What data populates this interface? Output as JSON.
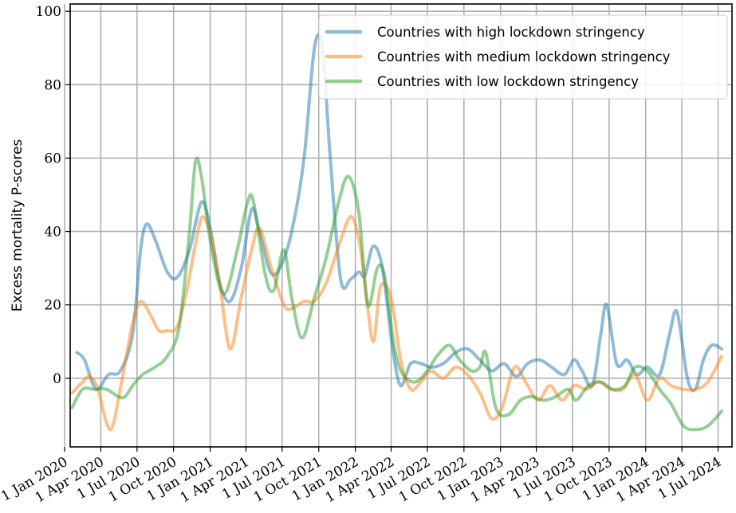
{
  "chart_data": {
    "type": "line",
    "title": "",
    "xlabel": "",
    "ylabel": "Excess mortality P-scores",
    "xlim": [
      "2020-01-15",
      "2024-08-05"
    ],
    "ylim": [
      -18.7,
      102
    ],
    "grid": true,
    "legend_position": "top-right",
    "x_tick_labels": [
      "1 Jan 2020",
      "1 Apr 2020",
      "1 Jul 2020",
      "1 Oct 2020",
      "1 Jan 2021",
      "1 Apr 2021",
      "1 Jul 2021",
      "1 Oct 2021",
      "1 Jan 2022",
      "1 Apr 2022",
      "1 Jul 2022",
      "1 Oct 2022",
      "1 Jan 2023",
      "1 Apr 2023",
      "1 Jul 2023",
      "1 Oct 2023",
      "1 Jan 2024",
      "1 Apr 2024",
      "1 Jul 2024"
    ],
    "x_tick_dates": [
      "2020-01-01",
      "2020-04-01",
      "2020-07-01",
      "2020-10-01",
      "2021-01-01",
      "2021-04-01",
      "2021-07-01",
      "2021-10-01",
      "2022-01-01",
      "2022-04-01",
      "2022-07-01",
      "2022-10-01",
      "2023-01-01",
      "2023-04-01",
      "2023-07-01",
      "2023-10-01",
      "2024-01-01",
      "2024-04-01",
      "2024-07-01"
    ],
    "y_ticks": [
      0,
      20,
      40,
      60,
      80,
      100
    ],
    "series": [
      {
        "name": "Countries with high lockdown stringency",
        "color": "#1f77b4",
        "points": [
          [
            "2020-02-01",
            7
          ],
          [
            "2020-02-20",
            5
          ],
          [
            "2020-03-20",
            -3
          ],
          [
            "2020-04-20",
            1
          ],
          [
            "2020-05-20",
            2
          ],
          [
            "2020-06-20",
            12
          ],
          [
            "2020-07-10",
            35
          ],
          [
            "2020-07-25",
            42
          ],
          [
            "2020-08-15",
            38
          ],
          [
            "2020-09-15",
            29
          ],
          [
            "2020-10-10",
            27.5
          ],
          [
            "2020-11-10",
            35
          ],
          [
            "2020-12-10",
            48
          ],
          [
            "2021-01-01",
            41
          ],
          [
            "2021-01-25",
            26
          ],
          [
            "2021-02-20",
            21
          ],
          [
            "2021-03-20",
            30
          ],
          [
            "2021-04-15",
            46
          ],
          [
            "2021-05-05",
            40
          ],
          [
            "2021-06-01",
            29
          ],
          [
            "2021-06-25",
            30
          ],
          [
            "2021-07-25",
            40
          ],
          [
            "2021-08-25",
            60
          ],
          [
            "2021-09-20",
            90
          ],
          [
            "2021-10-10",
            90
          ],
          [
            "2021-10-30",
            60
          ],
          [
            "2021-11-25",
            27
          ],
          [
            "2021-12-20",
            27
          ],
          [
            "2022-01-10",
            29
          ],
          [
            "2022-01-25",
            28
          ],
          [
            "2022-02-15",
            36
          ],
          [
            "2022-03-10",
            30
          ],
          [
            "2022-04-05",
            8
          ],
          [
            "2022-04-25",
            -2
          ],
          [
            "2022-05-20",
            4
          ],
          [
            "2022-06-15",
            4
          ],
          [
            "2022-07-10",
            3
          ],
          [
            "2022-08-10",
            4
          ],
          [
            "2022-09-10",
            7
          ],
          [
            "2022-10-10",
            8
          ],
          [
            "2022-11-10",
            5
          ],
          [
            "2022-12-10",
            2
          ],
          [
            "2023-01-10",
            4
          ],
          [
            "2023-02-10",
            0.5
          ],
          [
            "2023-03-10",
            4
          ],
          [
            "2023-04-10",
            5
          ],
          [
            "2023-05-10",
            3
          ],
          [
            "2023-06-10",
            1
          ],
          [
            "2023-07-05",
            5
          ],
          [
            "2023-07-25",
            2
          ],
          [
            "2023-08-20",
            -2
          ],
          [
            "2023-09-10",
            12
          ],
          [
            "2023-09-25",
            20
          ],
          [
            "2023-10-20",
            4
          ],
          [
            "2023-11-15",
            5
          ],
          [
            "2023-12-10",
            1
          ],
          [
            "2024-01-05",
            3
          ],
          [
            "2024-02-05",
            1
          ],
          [
            "2024-03-01",
            12
          ],
          [
            "2024-03-20",
            18
          ],
          [
            "2024-04-15",
            0
          ],
          [
            "2024-05-05",
            -3
          ],
          [
            "2024-05-25",
            5
          ],
          [
            "2024-06-15",
            9
          ],
          [
            "2024-07-10",
            8
          ]
        ]
      },
      {
        "name": "Countries with medium lockdown stringency",
        "color": "#ff7f0e",
        "points": [
          [
            "2020-01-20",
            -4
          ],
          [
            "2020-02-15",
            -1
          ],
          [
            "2020-03-05",
            0.5
          ],
          [
            "2020-03-25",
            -3
          ],
          [
            "2020-04-15",
            -12
          ],
          [
            "2020-05-01",
            -13
          ],
          [
            "2020-05-25",
            0
          ],
          [
            "2020-06-20",
            15
          ],
          [
            "2020-07-10",
            21
          ],
          [
            "2020-08-05",
            17
          ],
          [
            "2020-08-25",
            13
          ],
          [
            "2020-09-15",
            13
          ],
          [
            "2020-10-10",
            14
          ],
          [
            "2020-11-05",
            25
          ],
          [
            "2020-12-01",
            40
          ],
          [
            "2020-12-15",
            44
          ],
          [
            "2021-01-05",
            38
          ],
          [
            "2021-01-25",
            26
          ],
          [
            "2021-02-20",
            8
          ],
          [
            "2021-03-20",
            22
          ],
          [
            "2021-04-15",
            35
          ],
          [
            "2021-05-05",
            41
          ],
          [
            "2021-06-01",
            31
          ],
          [
            "2021-07-05",
            20
          ],
          [
            "2021-07-25",
            19
          ],
          [
            "2021-08-25",
            21
          ],
          [
            "2021-09-20",
            21
          ],
          [
            "2021-10-20",
            26
          ],
          [
            "2021-11-20",
            36
          ],
          [
            "2021-12-20",
            44
          ],
          [
            "2022-01-10",
            38
          ],
          [
            "2022-01-25",
            26
          ],
          [
            "2022-02-15",
            10
          ],
          [
            "2022-03-05",
            25
          ],
          [
            "2022-04-01",
            22
          ],
          [
            "2022-04-25",
            5
          ],
          [
            "2022-05-20",
            -3
          ],
          [
            "2022-06-15",
            -1
          ],
          [
            "2022-07-10",
            2
          ],
          [
            "2022-08-10",
            0
          ],
          [
            "2022-09-10",
            3
          ],
          [
            "2022-10-10",
            1
          ],
          [
            "2022-11-10",
            -4
          ],
          [
            "2022-12-10",
            -11
          ],
          [
            "2023-01-05",
            -8
          ],
          [
            "2023-02-05",
            3
          ],
          [
            "2023-03-05",
            -1
          ],
          [
            "2023-04-05",
            -6
          ],
          [
            "2023-05-05",
            -2
          ],
          [
            "2023-06-05",
            -6
          ],
          [
            "2023-07-05",
            -2
          ],
          [
            "2023-08-05",
            -3
          ],
          [
            "2023-09-05",
            -1
          ],
          [
            "2023-10-05",
            -3
          ],
          [
            "2023-11-05",
            -3
          ],
          [
            "2023-12-05",
            1
          ],
          [
            "2024-01-05",
            -6
          ],
          [
            "2024-02-05",
            0
          ],
          [
            "2024-03-05",
            -2
          ],
          [
            "2024-04-05",
            -3
          ],
          [
            "2024-05-05",
            -3
          ],
          [
            "2024-06-05",
            -1
          ],
          [
            "2024-07-10",
            6
          ]
        ]
      },
      {
        "name": "Countries with low lockdown stringency",
        "color": "#2ca02c",
        "points": [
          [
            "2020-01-20",
            -8
          ],
          [
            "2020-02-15",
            -3
          ],
          [
            "2020-03-15",
            -3
          ],
          [
            "2020-04-15",
            -3
          ],
          [
            "2020-05-15",
            -5
          ],
          [
            "2020-06-01",
            -5
          ],
          [
            "2020-06-20",
            -2
          ],
          [
            "2020-07-15",
            1
          ],
          [
            "2020-08-15",
            3
          ],
          [
            "2020-09-15",
            6
          ],
          [
            "2020-10-15",
            14
          ],
          [
            "2020-11-10",
            40
          ],
          [
            "2020-11-25",
            59
          ],
          [
            "2020-12-10",
            55
          ],
          [
            "2021-01-05",
            35
          ],
          [
            "2021-02-05",
            23
          ],
          [
            "2021-03-10",
            35
          ],
          [
            "2021-04-05",
            48
          ],
          [
            "2021-04-20",
            48
          ],
          [
            "2021-05-20",
            28
          ],
          [
            "2021-06-10",
            24
          ],
          [
            "2021-07-05",
            35
          ],
          [
            "2021-07-25",
            22
          ],
          [
            "2021-08-20",
            11
          ],
          [
            "2021-09-20",
            22
          ],
          [
            "2021-10-20",
            33
          ],
          [
            "2021-11-20",
            48
          ],
          [
            "2021-12-15",
            55
          ],
          [
            "2022-01-10",
            45
          ],
          [
            "2022-02-01",
            20
          ],
          [
            "2022-02-25",
            30
          ],
          [
            "2022-03-15",
            28
          ],
          [
            "2022-04-10",
            8
          ],
          [
            "2022-05-01",
            1
          ],
          [
            "2022-06-01",
            -1
          ],
          [
            "2022-07-01",
            2
          ],
          [
            "2022-07-25",
            6
          ],
          [
            "2022-08-25",
            9
          ],
          [
            "2022-09-20",
            5
          ],
          [
            "2022-10-20",
            2
          ],
          [
            "2022-11-10",
            3
          ],
          [
            "2022-11-25",
            7
          ],
          [
            "2022-12-20",
            -8
          ],
          [
            "2023-01-20",
            -10
          ],
          [
            "2023-02-20",
            -6
          ],
          [
            "2023-03-20",
            -5
          ],
          [
            "2023-04-20",
            -6
          ],
          [
            "2023-05-20",
            -5
          ],
          [
            "2023-06-20",
            -3
          ],
          [
            "2023-07-10",
            -6
          ],
          [
            "2023-08-10",
            -2
          ],
          [
            "2023-09-10",
            -1
          ],
          [
            "2023-10-10",
            -3
          ],
          [
            "2023-11-10",
            -2
          ],
          [
            "2023-12-05",
            3
          ],
          [
            "2024-01-05",
            2
          ],
          [
            "2024-02-05",
            -3
          ],
          [
            "2024-03-05",
            -7
          ],
          [
            "2024-04-05",
            -13
          ],
          [
            "2024-05-05",
            -14
          ],
          [
            "2024-06-05",
            -13
          ],
          [
            "2024-07-10",
            -9
          ]
        ]
      }
    ]
  }
}
